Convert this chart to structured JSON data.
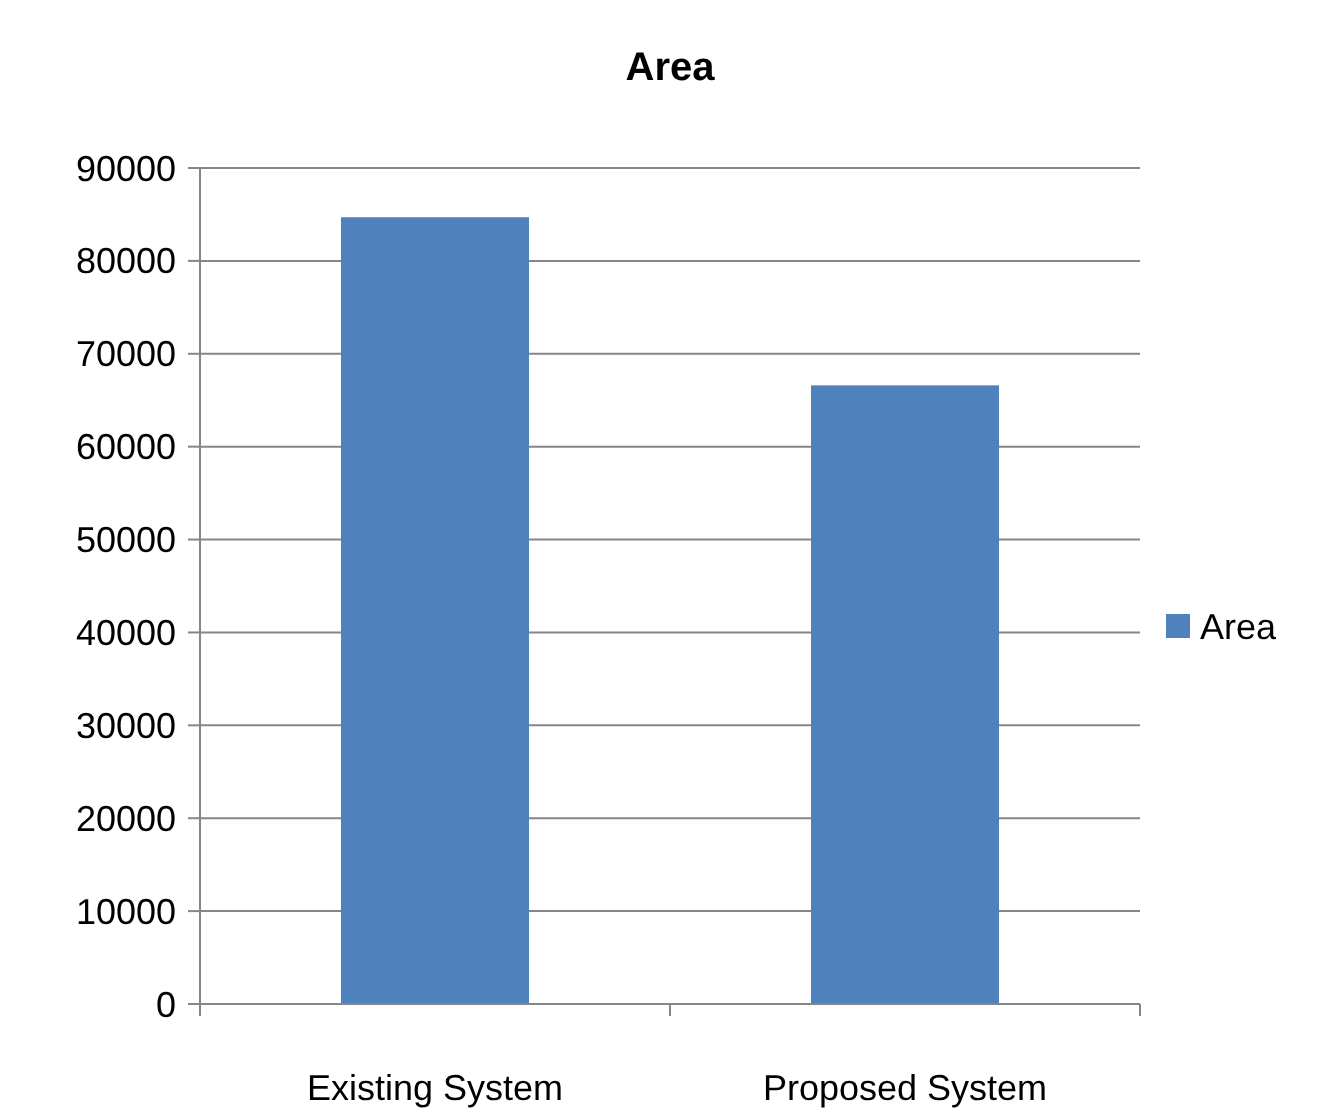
{
  "chart_data": {
    "type": "bar",
    "title": "Area",
    "categories": [
      "Existing System",
      "Proposed System"
    ],
    "series": [
      {
        "name": "Area",
        "color": "#4f81bd",
        "values": [
          84700,
          66600
        ]
      }
    ],
    "ylim": [
      0,
      90000
    ],
    "yticks": [
      0,
      10000,
      20000,
      30000,
      40000,
      50000,
      60000,
      70000,
      80000,
      90000
    ],
    "grid": "y",
    "legend": "right"
  }
}
